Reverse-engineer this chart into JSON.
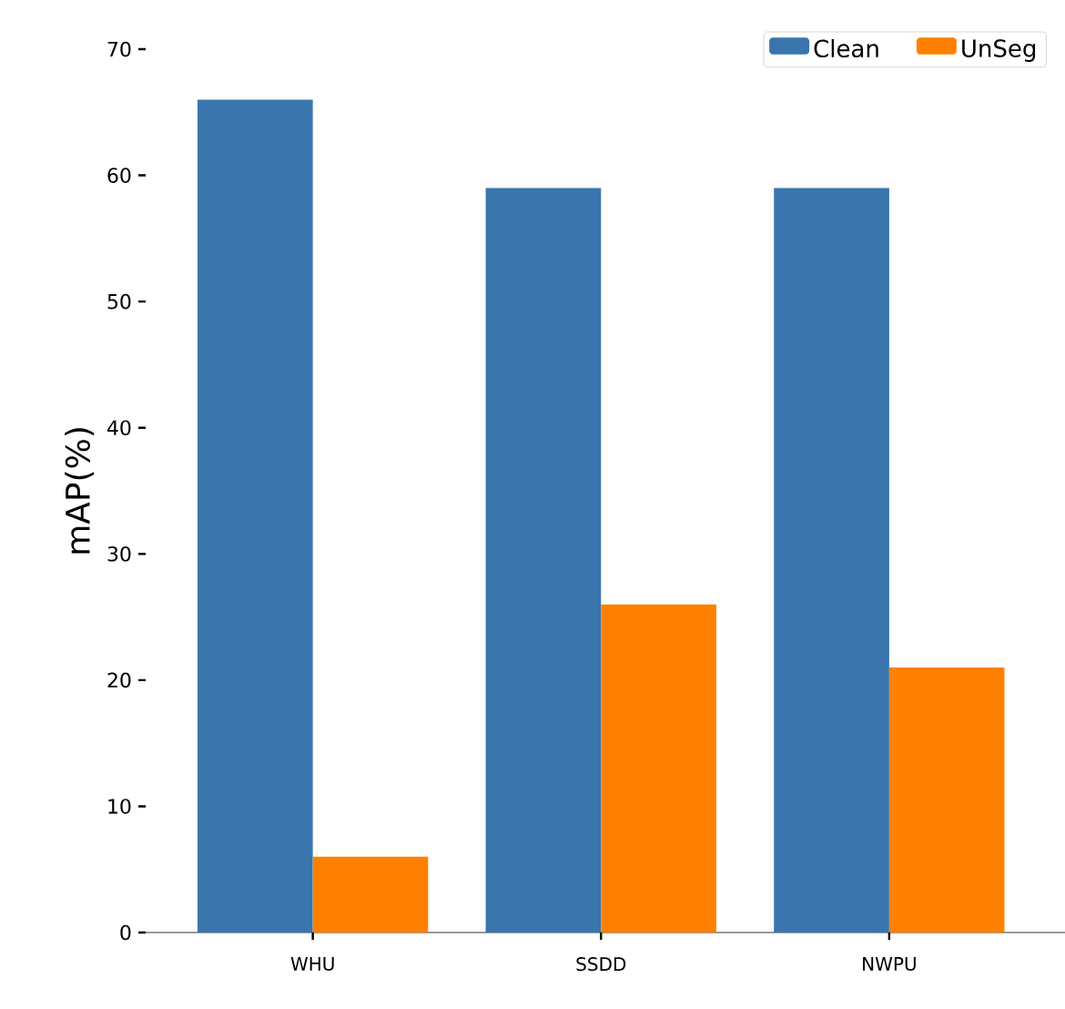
{
  "chart_data": {
    "type": "bar",
    "ylabel": "mAP(%)",
    "categories": [
      "WHU",
      "SSDD",
      "NWPU"
    ],
    "series": [
      {
        "name": "Clean",
        "color": "#3a75ae",
        "values": [
          66,
          59,
          59
        ]
      },
      {
        "name": "UnSeg",
        "color": "#ff8000",
        "values": [
          6,
          26,
          21
        ]
      }
    ],
    "ylim": [
      0,
      70
    ],
    "yticks": [
      0,
      10,
      20,
      30,
      40,
      50,
      60,
      70
    ],
    "legend": "top right"
  }
}
